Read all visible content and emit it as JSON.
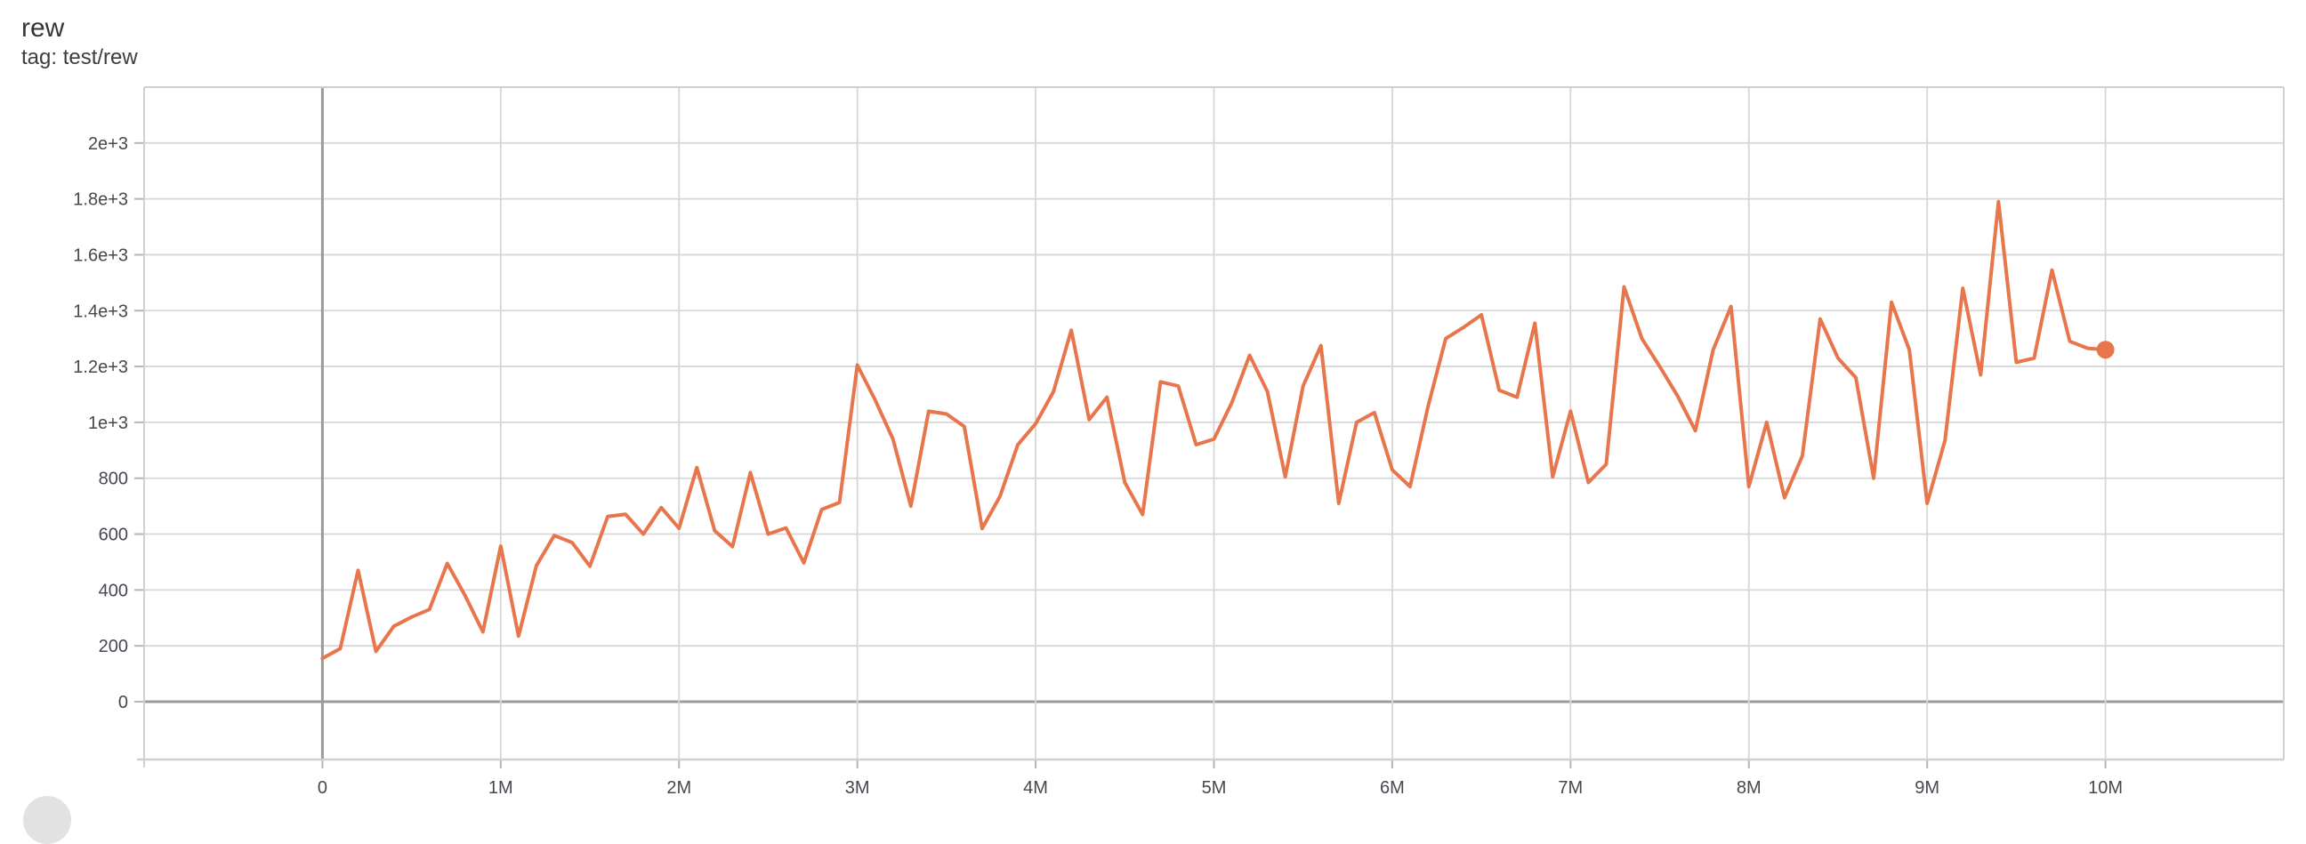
{
  "header": {
    "title": "rew",
    "subtitle": "tag: test/rew"
  },
  "chart_data": {
    "type": "line",
    "title": "rew",
    "tag": "test/rew",
    "xlabel": "",
    "ylabel": "",
    "grid": true,
    "legend": "none",
    "xlim": [
      -1000000,
      11000000
    ],
    "ylim": [
      -207,
      2200
    ],
    "x_ticks": [
      {
        "value": 0,
        "label": "0"
      },
      {
        "value": 1000000,
        "label": "1M"
      },
      {
        "value": 2000000,
        "label": "2M"
      },
      {
        "value": 3000000,
        "label": "3M"
      },
      {
        "value": 4000000,
        "label": "4M"
      },
      {
        "value": 5000000,
        "label": "5M"
      },
      {
        "value": 6000000,
        "label": "6M"
      },
      {
        "value": 7000000,
        "label": "7M"
      },
      {
        "value": 8000000,
        "label": "8M"
      },
      {
        "value": 9000000,
        "label": "9M"
      },
      {
        "value": 10000000,
        "label": "10M"
      }
    ],
    "y_ticks": [
      {
        "value": 0,
        "label": "0"
      },
      {
        "value": 200,
        "label": "200"
      },
      {
        "value": 400,
        "label": "400"
      },
      {
        "value": 600,
        "label": "600"
      },
      {
        "value": 800,
        "label": "800"
      },
      {
        "value": 1000,
        "label": "1e+3"
      },
      {
        "value": 1200,
        "label": "1.2e+3"
      },
      {
        "value": 1400,
        "label": "1.4e+3"
      },
      {
        "value": 1600,
        "label": "1.6e+3"
      },
      {
        "value": 1800,
        "label": "1.8e+3"
      },
      {
        "value": 2000,
        "label": "2e+3"
      }
    ],
    "series": [
      {
        "name": "test/rew",
        "color": "#e8764d",
        "x_start": 0,
        "step_interval": 100000,
        "end_dot": true,
        "values": [
          155,
          190,
          470,
          180,
          270,
          303,
          330,
          495,
          380,
          250,
          557,
          235,
          487,
          595,
          570,
          485,
          663,
          671,
          600,
          695,
          621,
          838,
          612,
          555,
          820,
          600,
          622,
          497,
          688,
          713,
          1205,
          1080,
          940,
          700,
          1040,
          1030,
          985,
          620,
          735,
          920,
          995,
          1110,
          1330,
          1010,
          1090,
          785,
          670,
          1145,
          1130,
          920,
          940,
          1070,
          1240,
          1110,
          805,
          1130,
          1275,
          710,
          1000,
          1035,
          830,
          770,
          1055,
          1300,
          1340,
          1385,
          1115,
          1090,
          1355,
          805,
          1040,
          785,
          850,
          1485,
          1300,
          1200,
          1095,
          970,
          1260,
          1415,
          770,
          1000,
          730,
          880,
          1370,
          1230,
          1160,
          800,
          1430,
          1260,
          710,
          935,
          1480,
          1170,
          1790,
          1215,
          1230,
          1545,
          1290,
          1265,
          1260
        ]
      }
    ]
  },
  "style": {
    "line_color": "#e8764d",
    "gridline_color": "#d7d7d7",
    "zero_line_color": "#9b9b9b",
    "frame_color": "#d0d0d0",
    "tick_label_color": "#45494e",
    "tick_mark_color": "#b5b5b5"
  }
}
